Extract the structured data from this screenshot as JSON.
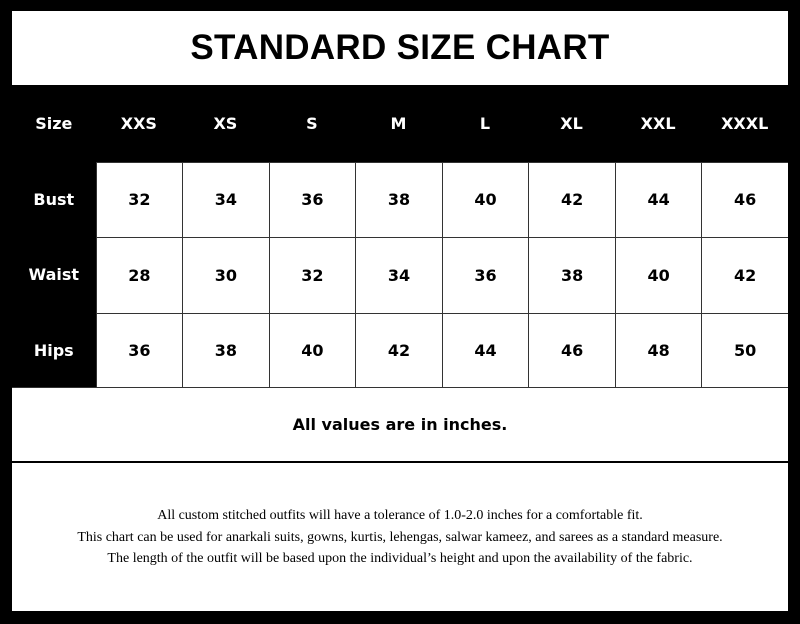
{
  "title": "STANDARD SIZE CHART",
  "table": {
    "header_label": "Size",
    "sizes": [
      "XXS",
      "XS",
      "S",
      "M",
      "L",
      "XL",
      "XXL",
      "XXXL"
    ],
    "rows": [
      {
        "label": "Bust",
        "values": [
          "32",
          "34",
          "36",
          "38",
          "40",
          "42",
          "44",
          "46"
        ]
      },
      {
        "label": "Waist",
        "values": [
          "28",
          "30",
          "32",
          "34",
          "36",
          "38",
          "40",
          "42"
        ]
      },
      {
        "label": "Hips",
        "values": [
          "36",
          "38",
          "40",
          "42",
          "44",
          "46",
          "48",
          "50"
        ]
      }
    ]
  },
  "units_note": "All values are in inches.",
  "info_lines": [
    "All custom stitched outfits will have a tolerance of 1.0-2.0 inches for a comfortable fit.",
    "This chart can be used for anarkali suits, gowns, kurtis, lehengas, salwar kameez, and sarees as a standard measure.",
    "The length of the outfit will be based upon the individual’s height and upon the availability of the fabric."
  ]
}
